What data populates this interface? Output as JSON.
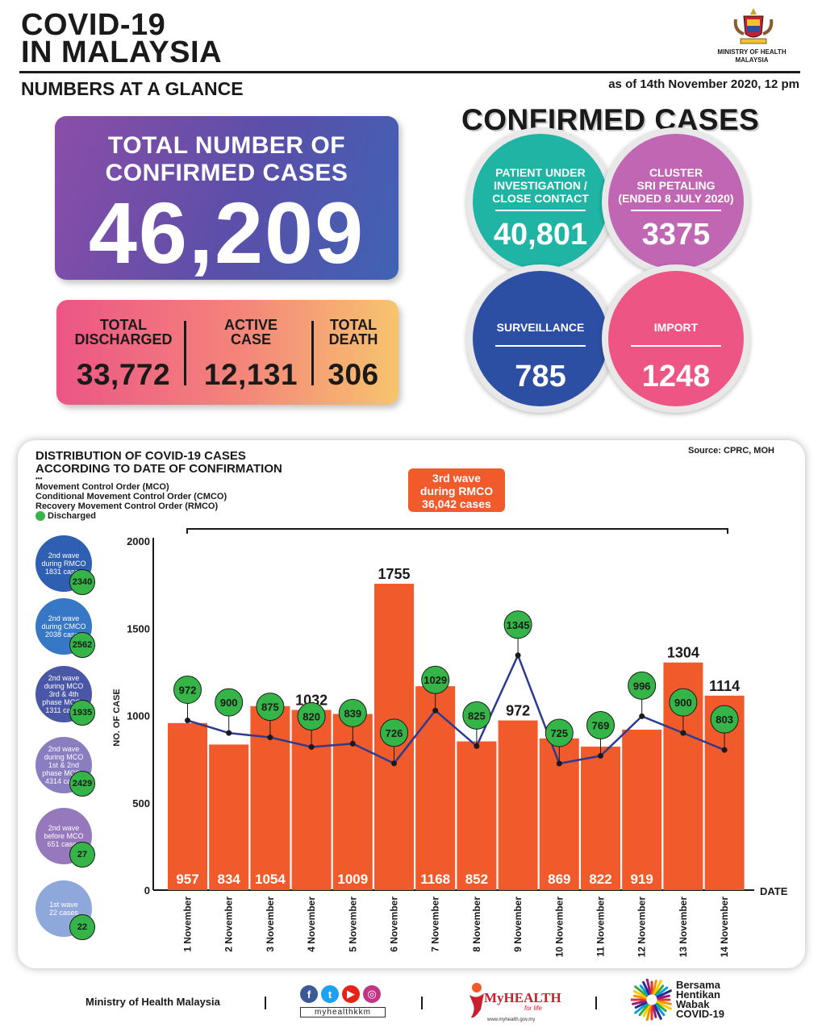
{
  "header": {
    "title_line1": "COVID-19",
    "title_line2": "IN MALAYSIA",
    "subtitle": "NUMBERS AT A GLANCE",
    "as_of": "as of 14th November 2020, 12 pm",
    "ministry_line1": "MINISTRY OF HEALTH",
    "ministry_line2": "MALAYSIA"
  },
  "total": {
    "label_line1": "TOTAL NUMBER OF",
    "label_line2": "CONFIRMED CASES",
    "value": "46,209"
  },
  "stats": {
    "discharged_l1": "TOTAL",
    "discharged_l2": "DISCHARGED",
    "discharged": "33,772",
    "active_l1": "ACTIVE",
    "active_l2": "CASE",
    "active": "12,131",
    "death_l1": "TOTAL",
    "death_l2": "DEATH",
    "death": "306"
  },
  "confirmed": {
    "title": "CONFIRMED CASES",
    "pui_l1": "PATIENT UNDER",
    "pui_l2": "INVESTIGATION /",
    "pui_l3": "CLOSE CONTACT",
    "pui": "40,801",
    "cluster_l1": "CLUSTER",
    "cluster_l2": "SRI PETALING",
    "cluster_l3": "(ENDED 8 JULY 2020)",
    "cluster": "3375",
    "surveillance_label": "SURVEILLANCE",
    "surveillance": "785",
    "import_label": "IMPORT",
    "import": "1248",
    "colors": {
      "pui": "#1fb4a4",
      "cluster": "#c066b3",
      "surveillance": "#2d4fa3",
      "import": "#ed5585"
    }
  },
  "panel": {
    "title_l1": "DISTRIBUTION OF COVID-19 CASES",
    "title_l2": "ACCORDING TO DATE OF CONFIRMATION",
    "source": "Source: CPRC, MOH",
    "legend_dots": "•••",
    "legend_mco": "Movement Control Order (MCO)",
    "legend_cmco": "Conditional Movement Control Order (CMCO)",
    "legend_rmco": "Recovery Movement Control Order (RMCO)",
    "legend_discharged": "Discharged",
    "wave_l1": "3rd wave",
    "wave_l2": "during RMCO",
    "wave_l3": "36,042 cases"
  },
  "waves": [
    {
      "l1": "2nd wave",
      "l2": "during RMCO",
      "l3": "1831 cases",
      "l4": "",
      "l5": "",
      "badge": "2340",
      "color": "#2f5fb3"
    },
    {
      "l1": "2nd wave",
      "l2": "during CMCO",
      "l3": "2038 cases",
      "l4": "",
      "l5": "",
      "badge": "2562",
      "color": "#3778c6"
    },
    {
      "l1": "2nd wave",
      "l2": "during MCO",
      "l3": "3rd & 4th",
      "l4": "phase MCO -",
      "l5": "1311 cases",
      "badge": "1935",
      "color": "#4a56a6"
    },
    {
      "l1": "2nd wave",
      "l2": "during MCO",
      "l3": "1st & 2nd",
      "l4": "phase MCO -",
      "l5": "4314 cases",
      "badge": "2429",
      "color": "#8a7dc0"
    },
    {
      "l1": "2nd wave",
      "l2": "before MCO",
      "l3": "651 cases",
      "l4": "",
      "l5": "",
      "badge": "27",
      "color": "#9679bd"
    },
    {
      "l1": "1st wave",
      "l2": "22 cases",
      "l3": "",
      "l4": "",
      "l5": "",
      "badge": "22",
      "color": "#8fa8db"
    }
  ],
  "footer": {
    "ministry": "Ministry of Health Malaysia",
    "handle": "myhealthkkm",
    "myhealth": "MyHEALTH",
    "myhealth_tag": "for life",
    "myhealth_url": "www.myhealth.gov.my",
    "bersama_l1": "Bersama",
    "bersama_l2": "Hentikan",
    "bersama_l3": "Wabak",
    "bersama_l4": "COVID-19"
  },
  "chart_data": {
    "type": "bar",
    "categories": [
      "1 November",
      "2 November",
      "3 November",
      "4 November",
      "5 November",
      "6 November",
      "7 November",
      "8 November",
      "9 November",
      "10 November",
      "11 November",
      "12 November",
      "13 November",
      "14 November"
    ],
    "series": [
      {
        "values": [
          957,
          834,
          1054,
          1032,
          1009,
          1755,
          1168,
          852,
          972,
          869,
          822,
          919,
          1304,
          1114
        ],
        "color": "#f15a2b"
      },
      {
        "name": "Discharged",
        "type": "line",
        "values": [
          972,
          900,
          875,
          820,
          839,
          726,
          1029,
          825,
          1345,
          725,
          769,
          996,
          900,
          803
        ],
        "color": "#2b3b8f"
      }
    ],
    "xlabel": "DATE",
    "ylabel": "NO. OF CASE",
    "yticks": [
      0,
      500,
      1000,
      1500,
      2000
    ],
    "ylim": [
      0,
      2000
    ],
    "grid": false,
    "bar_label_position": [
      "inside",
      "inside",
      "inside",
      "above",
      "inside",
      "above",
      "inside",
      "inside",
      "above",
      "inside",
      "inside",
      "inside",
      "above",
      "above"
    ]
  }
}
